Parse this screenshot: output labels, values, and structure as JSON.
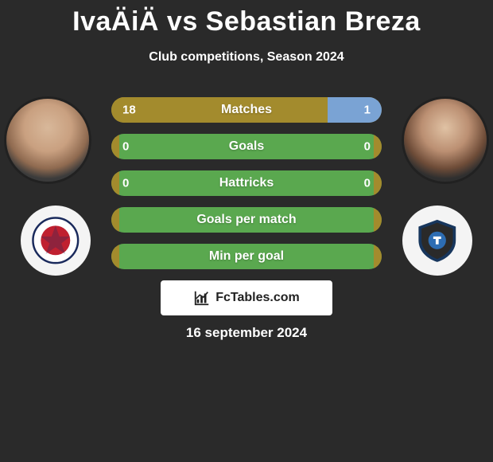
{
  "title": "IvaÄiÄ vs Sebastian Breza",
  "subtitle": "Club competitions, Season 2024",
  "date": "16 september 2024",
  "attribution": "FcTables.com",
  "colors": {
    "olive": "#a38b2d",
    "blue": "#7aa3d4",
    "green": "#5aa84f",
    "background": "#2a2a2a",
    "white": "#ffffff"
  },
  "rows": [
    {
      "label": "Matches",
      "left_value": "18",
      "right_value": "1",
      "left_pct": 80,
      "right_pct": 20,
      "left_color": "#a38b2d",
      "right_color": "#7aa3d4",
      "show_values": true
    },
    {
      "label": "Goals",
      "left_value": "0",
      "right_value": "0",
      "left_pct": 3,
      "right_pct": 3,
      "left_color": "#a38b2d",
      "right_color": "#a38b2d",
      "track_color": "#5aa84f",
      "show_values": true
    },
    {
      "label": "Hattricks",
      "left_value": "0",
      "right_value": "0",
      "left_pct": 3,
      "right_pct": 3,
      "left_color": "#a38b2d",
      "right_color": "#a38b2d",
      "track_color": "#5aa84f",
      "show_values": true
    },
    {
      "label": "Goals per match",
      "left_value": "",
      "right_value": "",
      "left_pct": 3,
      "right_pct": 3,
      "left_color": "#a38b2d",
      "right_color": "#a38b2d",
      "track_color": "#5aa84f",
      "show_values": false
    },
    {
      "label": "Min per goal",
      "left_value": "",
      "right_value": "",
      "left_pct": 3,
      "right_pct": 3,
      "left_color": "#a38b2d",
      "right_color": "#a38b2d",
      "track_color": "#5aa84f",
      "show_values": false
    }
  ]
}
